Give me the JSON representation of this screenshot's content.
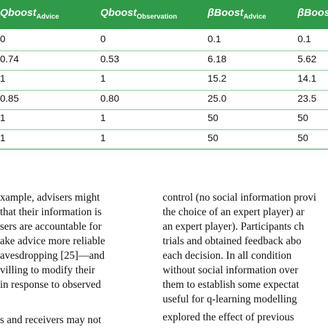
{
  "table": {
    "headers": [
      {
        "main": "Qboost",
        "sub": "Advice"
      },
      {
        "main": "Qboost",
        "sub": "Observation"
      },
      {
        "main": "βBoost",
        "sub": "Advice"
      },
      {
        "main": "βBoost",
        "sub": ""
      }
    ],
    "rows": [
      [
        "0",
        "0",
        "0.1",
        "0.1"
      ],
      [
        "0.74",
        "0.53",
        "6.18",
        "5.62"
      ],
      [
        "1",
        "1",
        "15.2",
        "14.1"
      ],
      [
        "0.85",
        "0.80",
        "25.0",
        "23.5"
      ],
      [
        "1",
        "1",
        "50",
        "50"
      ],
      [
        "1",
        "1",
        "50",
        "50"
      ]
    ]
  },
  "text": {
    "left_column": [
      "xample, advisers might",
      "that their information is",
      "sers are accountable for",
      "ake advice more reliable",
      "avesdropping [25]—and",
      "villing to modify their",
      "in response to observed",
      "s and receivers may not"
    ],
    "right_column": [
      "control (no social information provi",
      "the choice of an expert player) ar",
      "an expert player). Participants ch",
      "trials and obtained feedback abo",
      "each decision. In all condition",
      "without social information over",
      "them to establish some expectat",
      "useful for q-learning modelling",
      "explored the effect of previous"
    ]
  }
}
